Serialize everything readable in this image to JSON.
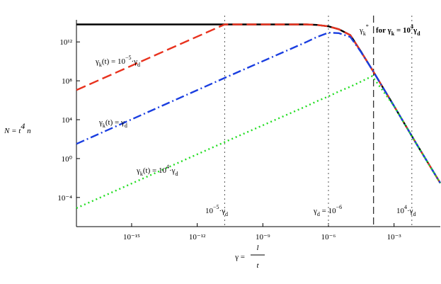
{
  "chart_data": {
    "type": "line",
    "xscale": "log",
    "yscale": "log",
    "ylabel": [
      [
        "N = t",
        ""
      ],
      [
        "4",
        "sup"
      ],
      [
        " n",
        ""
      ]
    ],
    "xlabel": {
      "left": "γ =",
      "num": "l",
      "den": "t"
    },
    "x": [
      3e-18,
      1.8e-11,
      1e-07,
      3e-07,
      1e-06,
      3e-06,
      1e-05,
      3e-05,
      0.0001,
      0.001,
      0.01,
      0.13
    ],
    "series": [
      {
        "color": "#000000",
        "dash": "solid",
        "values": [
          63000000000000.0,
          63000000000000.0,
          63000000000000.0,
          56000000000000.0,
          40000000000000.0,
          20000000000000.0,
          5000000000000.0,
          110000000000.0,
          1400000000.0,
          250000.0,
          40,
          0.003
        ]
      },
      {
        "color": "#e8321e",
        "dash": "dashed",
        "values": [
          11000000.0,
          63000000000000.0,
          63000000000000.0,
          56000000000000.0,
          40000000000000.0,
          20000000000000.0,
          5000000000000.0,
          110000000000.0,
          1400000000.0,
          250000.0,
          40,
          0.003
        ]
      },
      {
        "color": "#1a3ee0",
        "dash": "dashdot",
        "values": [
          32,
          200000000.0,
          1000000000000.0,
          3200000000000.0,
          9000000000000.0,
          8000000000000.0,
          3200000000000.0,
          100000000000.0,
          1400000000.0,
          250000.0,
          40,
          0.003
        ]
      },
      {
        "color": "#22dd22",
        "dash": "dotted",
        "values": [
          8e-06,
          50,
          250000.0,
          800000.0,
          2500000.0,
          8000000.0,
          25000000.0,
          80000000.0,
          300000000.0,
          250000.0,
          40,
          0.003
        ]
      }
    ],
    "xlim": [
      3e-18,
      0.13
    ],
    "ylim": [
      1e-07,
      1000000000000000.0
    ],
    "xticks": [
      {
        "value": 1e-15,
        "label": "10⁻¹⁵"
      },
      {
        "value": 1e-12,
        "label": "10⁻¹²"
      },
      {
        "value": 1e-09,
        "label": "10⁻⁹"
      },
      {
        "value": 1e-06,
        "label": "10⁻⁶"
      },
      {
        "value": 0.001,
        "label": "10⁻³"
      }
    ],
    "yticks": [
      {
        "value": 0.0001,
        "label": "10⁻⁴"
      },
      {
        "value": 1,
        "label": "10⁰"
      },
      {
        "value": 10000.0,
        "label": "10⁴"
      },
      {
        "value": 100000000.0,
        "label": "10⁸"
      },
      {
        "value": 1000000000000.0,
        "label": "10¹²"
      }
    ],
    "vlines": [
      {
        "x": 1.8e-11,
        "dash": "dotted"
      },
      {
        "x": 1e-06,
        "dash": "dotted"
      },
      {
        "x": 0.0065,
        "dash": "dotted"
      },
      {
        "x": 0.000115,
        "dash": "longdash"
      }
    ],
    "annotations": [
      [
        [
          "γ",
          ""
        ],
        [
          "k",
          "sub"
        ],
        [
          "(t) = 10",
          ""
        ],
        [
          "−5",
          "sup"
        ],
        [
          "·γ",
          ""
        ],
        [
          "d",
          "sub"
        ]
      ],
      [
        [
          "γ",
          ""
        ],
        [
          "k",
          "sub"
        ],
        [
          "(t) = γ",
          ""
        ],
        [
          "d",
          "sub"
        ]
      ],
      [
        [
          "γ",
          ""
        ],
        [
          "k",
          "sub"
        ],
        [
          "(t) = 10",
          ""
        ],
        [
          "4",
          "sup"
        ],
        [
          "·γ",
          ""
        ],
        [
          "d",
          "sub"
        ]
      ],
      [
        [
          "10",
          ""
        ],
        [
          "−5",
          "sup"
        ],
        [
          "·γ",
          ""
        ],
        [
          "d",
          "sub"
        ]
      ],
      [
        [
          "γ",
          ""
        ],
        [
          "d",
          "sub"
        ],
        [
          " = 10",
          ""
        ],
        [
          "−6",
          "sup"
        ]
      ],
      [
        [
          "10",
          ""
        ],
        [
          "4",
          "sup"
        ],
        [
          "·γ",
          ""
        ],
        [
          "d",
          "sub"
        ]
      ],
      [
        [
          "γ",
          ""
        ],
        [
          "k",
          "sub"
        ],
        [
          "*",
          "sup"
        ]
      ],
      [
        [
          "for γ",
          "bold"
        ],
        [
          "k",
          "boldsub"
        ],
        [
          " = 10",
          "bold"
        ],
        [
          "4",
          "boldsup"
        ],
        [
          "γ",
          "bold"
        ],
        [
          "d",
          "boldsub"
        ]
      ]
    ]
  }
}
